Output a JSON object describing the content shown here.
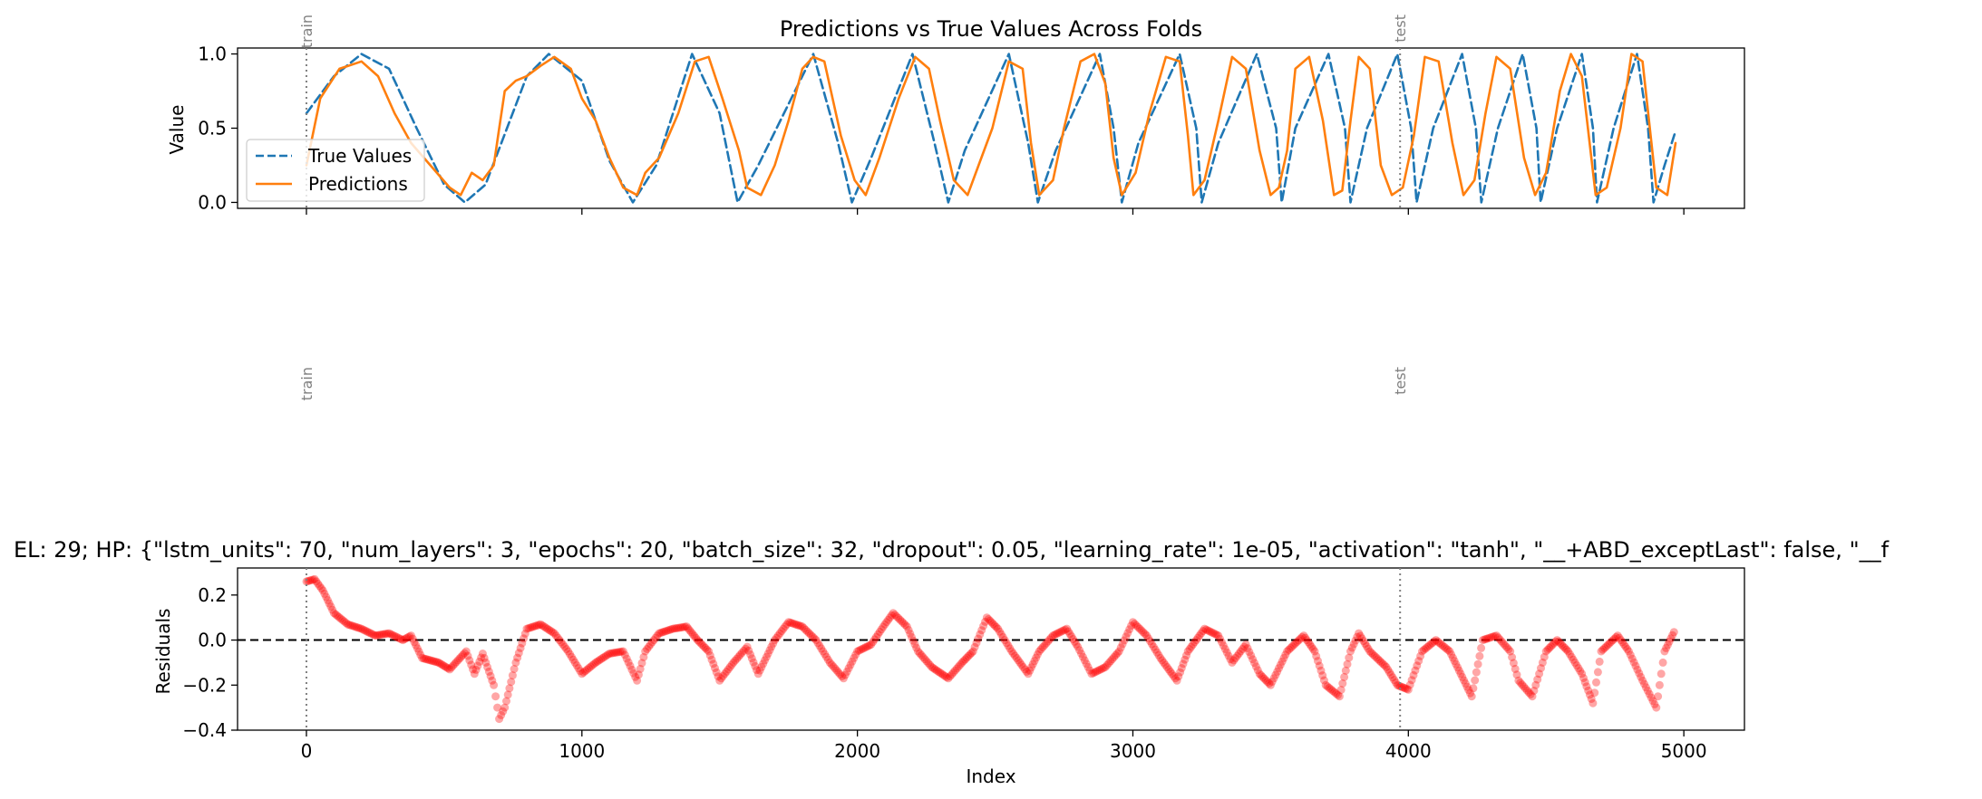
{
  "chart_data": [
    {
      "type": "line",
      "title": "Predictions vs True Values Across Folds",
      "ylabel": "Value",
      "xlim": [
        -250,
        5220
      ],
      "ylim": [
        -0.04,
        1.04
      ],
      "yticks": [
        "0.0",
        "0.5",
        "1.0"
      ],
      "xticks": [
        0,
        1000,
        2000,
        3000,
        4000,
        5000
      ],
      "legend": {
        "placement": "center-left",
        "entries": [
          "True Values",
          "Predictions"
        ]
      },
      "fold_markers": [
        {
          "x": 0,
          "label": "train"
        },
        {
          "x": 3970,
          "label": "test"
        }
      ],
      "series": [
        {
          "name": "True Values",
          "style": "dashed",
          "color": "#1f77b4",
          "x": [
            0,
            100,
            200,
            300,
            400,
            500,
            575,
            650,
            800,
            880,
            1000,
            1100,
            1185,
            1270,
            1400,
            1500,
            1565,
            1640,
            1840,
            1930,
            1980,
            2050,
            2200,
            2280,
            2330,
            2390,
            2550,
            2620,
            2655,
            2720,
            2880,
            2930,
            2960,
            3020,
            3170,
            3230,
            3250,
            3310,
            3450,
            3520,
            3540,
            3590,
            3710,
            3770,
            3790,
            3850,
            3960,
            4010,
            4030,
            4090,
            4195,
            4245,
            4265,
            4325,
            4415,
            4465,
            4480,
            4540,
            4630,
            4670,
            4685,
            4745,
            4830,
            4870,
            4890,
            4930,
            4970
          ],
          "values": [
            0.6,
            0.85,
            1.0,
            0.9,
            0.5,
            0.12,
            0.0,
            0.12,
            0.85,
            1.0,
            0.82,
            0.28,
            0.0,
            0.25,
            1.0,
            0.6,
            0.0,
            0.25,
            1.0,
            0.4,
            0.0,
            0.3,
            1.0,
            0.4,
            0.0,
            0.35,
            1.0,
            0.4,
            0.0,
            0.35,
            1.0,
            0.5,
            0.0,
            0.4,
            1.0,
            0.5,
            0.0,
            0.4,
            1.0,
            0.5,
            0.0,
            0.5,
            1.0,
            0.5,
            0.0,
            0.5,
            1.0,
            0.5,
            0.0,
            0.5,
            1.0,
            0.5,
            0.0,
            0.5,
            1.0,
            0.5,
            0.0,
            0.5,
            1.0,
            0.5,
            0.0,
            0.5,
            1.0,
            0.5,
            0.0,
            0.25,
            0.48
          ]
        },
        {
          "name": "Predictions",
          "style": "solid",
          "color": "#ff7f0e",
          "x": [
            0,
            50,
            120,
            200,
            260,
            320,
            380,
            450,
            520,
            560,
            600,
            640,
            680,
            700,
            720,
            760,
            800,
            850,
            900,
            960,
            1000,
            1050,
            1100,
            1150,
            1200,
            1230,
            1280,
            1350,
            1410,
            1460,
            1510,
            1570,
            1600,
            1650,
            1700,
            1750,
            1800,
            1840,
            1880,
            1940,
            1990,
            2030,
            2080,
            2150,
            2210,
            2260,
            2300,
            2350,
            2400,
            2440,
            2490,
            2550,
            2600,
            2630,
            2660,
            2710,
            2750,
            2810,
            2860,
            2900,
            2930,
            2960,
            3010,
            3060,
            3120,
            3170,
            3200,
            3220,
            3260,
            3310,
            3360,
            3410,
            3460,
            3500,
            3530,
            3560,
            3590,
            3640,
            3690,
            3730,
            3760,
            3790,
            3820,
            3860,
            3900,
            3940,
            3980,
            4020,
            4060,
            4110,
            4160,
            4200,
            4240,
            4280,
            4320,
            4370,
            4420,
            4460,
            4500,
            4550,
            4590,
            4630,
            4680,
            4720,
            4770,
            4810,
            4850,
            4900,
            4940,
            4970
          ],
          "values": [
            0.25,
            0.7,
            0.9,
            0.95,
            0.85,
            0.6,
            0.4,
            0.25,
            0.1,
            0.05,
            0.2,
            0.15,
            0.25,
            0.5,
            0.75,
            0.82,
            0.85,
            0.92,
            0.98,
            0.9,
            0.7,
            0.55,
            0.3,
            0.1,
            0.05,
            0.2,
            0.3,
            0.6,
            0.95,
            0.98,
            0.7,
            0.35,
            0.1,
            0.05,
            0.25,
            0.55,
            0.9,
            0.98,
            0.95,
            0.45,
            0.15,
            0.05,
            0.3,
            0.7,
            0.98,
            0.9,
            0.55,
            0.15,
            0.05,
            0.25,
            0.5,
            0.95,
            0.9,
            0.4,
            0.05,
            0.15,
            0.5,
            0.95,
            1.0,
            0.8,
            0.3,
            0.05,
            0.2,
            0.6,
            0.98,
            0.95,
            0.45,
            0.05,
            0.15,
            0.55,
            0.98,
            0.9,
            0.35,
            0.05,
            0.1,
            0.35,
            0.9,
            0.98,
            0.55,
            0.05,
            0.08,
            0.55,
            0.98,
            0.9,
            0.25,
            0.05,
            0.1,
            0.45,
            0.98,
            0.95,
            0.4,
            0.05,
            0.15,
            0.6,
            0.98,
            0.9,
            0.3,
            0.05,
            0.2,
            0.75,
            1.0,
            0.85,
            0.05,
            0.1,
            0.5,
            1.0,
            0.95,
            0.1,
            0.05,
            0.4
          ]
        }
      ]
    },
    {
      "type": "scatter",
      "title": "EL: 29; HP: {\"lstm_units\": 70, \"num_layers\": 3, \"epochs\": 20, \"batch_size\": 32, \"dropout\": 0.05, \"learning_rate\": 1e-05, \"activation\": \"tanh\", \"__+ABD_exceptLast\": false, \"__f",
      "ylabel": "Residuals",
      "xlabel": "Index",
      "xlim": [
        -250,
        5220
      ],
      "ylim": [
        -0.4,
        0.32
      ],
      "yticks": [
        "−0.4",
        "−0.2",
        "0.0",
        "0.2"
      ],
      "xticks": [
        0,
        1000,
        2000,
        3000,
        4000,
        5000
      ],
      "reference_line": 0.0,
      "fold_markers": [
        {
          "x": 0,
          "label": "train"
        },
        {
          "x": 3970,
          "label": "test"
        }
      ],
      "series": [
        {
          "name": "Residuals",
          "color": "#ff0000",
          "x": [
            0,
            30,
            60,
            100,
            150,
            200,
            250,
            300,
            350,
            380,
            420,
            480,
            520,
            580,
            610,
            640,
            680,
            700,
            720,
            760,
            800,
            850,
            900,
            950,
            1000,
            1050,
            1100,
            1150,
            1200,
            1230,
            1280,
            1330,
            1380,
            1420,
            1460,
            1500,
            1550,
            1600,
            1640,
            1700,
            1750,
            1800,
            1850,
            1900,
            1950,
            2000,
            2050,
            2100,
            2130,
            2180,
            2220,
            2270,
            2330,
            2380,
            2420,
            2470,
            2510,
            2560,
            2620,
            2660,
            2710,
            2760,
            2800,
            2850,
            2900,
            2950,
            3000,
            3050,
            3100,
            3160,
            3200,
            3260,
            3310,
            3360,
            3410,
            3460,
            3500,
            3560,
            3620,
            3660,
            3700,
            3750,
            3790,
            3820,
            3860,
            3920,
            3960,
            4000,
            4050,
            4100,
            4150,
            4190,
            4230,
            4270,
            4320,
            4370,
            4400,
            4450,
            4500,
            4540,
            4580,
            4630,
            4670,
            4700,
            4760,
            4800,
            4850,
            4900,
            4930,
            4970
          ],
          "values": [
            0.26,
            0.27,
            0.22,
            0.12,
            0.07,
            0.05,
            0.02,
            0.03,
            0.0,
            0.02,
            -0.08,
            -0.1,
            -0.13,
            -0.05,
            -0.15,
            -0.06,
            -0.2,
            -0.35,
            -0.3,
            -0.1,
            0.05,
            0.07,
            0.03,
            -0.05,
            -0.15,
            -0.1,
            -0.06,
            -0.05,
            -0.18,
            -0.05,
            0.03,
            0.05,
            0.06,
            0.0,
            -0.05,
            -0.18,
            -0.1,
            -0.03,
            -0.15,
            0.0,
            0.08,
            0.06,
            0.0,
            -0.1,
            -0.17,
            -0.05,
            -0.02,
            0.07,
            0.12,
            0.06,
            -0.05,
            -0.12,
            -0.17,
            -0.1,
            -0.05,
            0.1,
            0.05,
            -0.05,
            -0.15,
            -0.05,
            0.02,
            0.05,
            -0.03,
            -0.15,
            -0.12,
            -0.05,
            0.08,
            0.02,
            -0.08,
            -0.18,
            -0.05,
            0.05,
            0.02,
            -0.1,
            -0.02,
            -0.15,
            -0.2,
            -0.05,
            0.02,
            -0.05,
            -0.2,
            -0.25,
            -0.05,
            0.03,
            -0.05,
            -0.12,
            -0.2,
            -0.22,
            -0.05,
            0.0,
            -0.05,
            -0.15,
            -0.25,
            0.0,
            0.02,
            -0.05,
            -0.18,
            -0.25,
            -0.05,
            0.0,
            -0.05,
            -0.15,
            -0.28,
            -0.05,
            0.02,
            -0.05,
            -0.18,
            -0.3,
            -0.05,
            0.05
          ]
        }
      ]
    }
  ]
}
